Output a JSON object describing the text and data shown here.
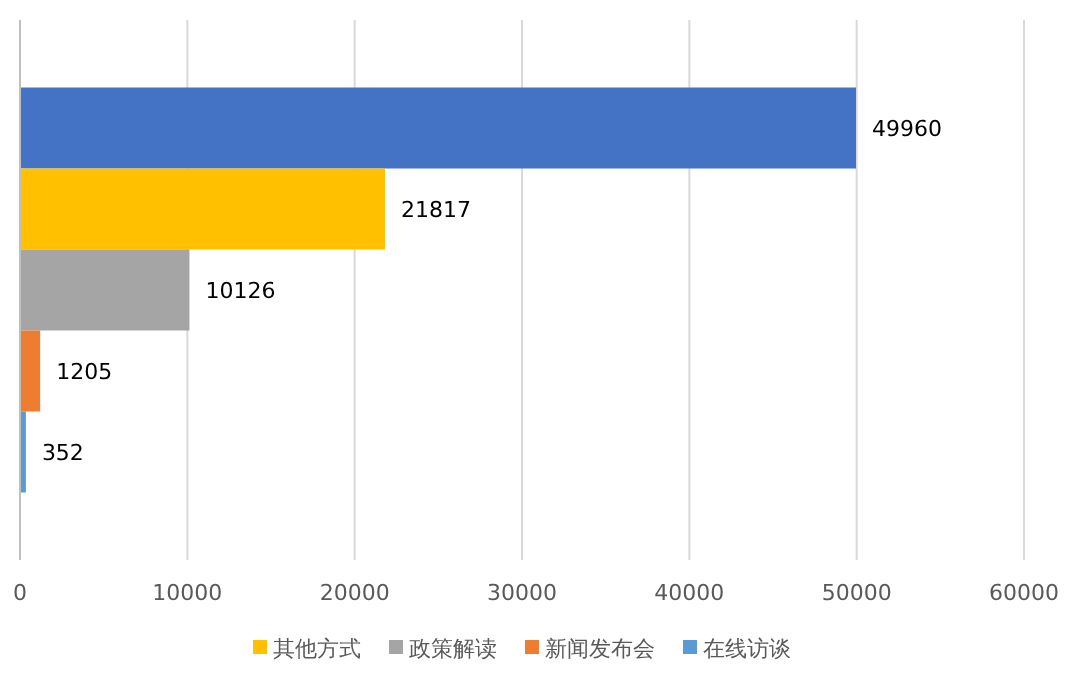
{
  "chart_data": {
    "type": "bar",
    "orientation": "horizontal",
    "categories": [
      null
    ],
    "series": [
      {
        "color": "#4472c4",
        "values": [
          49960
        ]
      },
      {
        "name": "其他方式",
        "color": "#ffc000",
        "values": [
          21817
        ]
      },
      {
        "name": "政策解读",
        "color": "#a5a5a5",
        "values": [
          10126
        ]
      },
      {
        "name": "新闻发布会",
        "color": "#ed7d31",
        "values": [
          1205
        ]
      },
      {
        "name": "在线访谈",
        "color": "#5b9bd5",
        "values": [
          352
        ]
      }
    ],
    "xlim": [
      0,
      60000
    ],
    "xticks": [
      0,
      10000,
      20000,
      30000,
      40000,
      50000,
      60000
    ],
    "grid": "x",
    "data_labels": true,
    "legend": "bottom"
  }
}
